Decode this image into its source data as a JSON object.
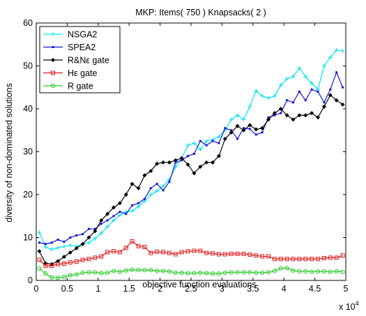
{
  "chart_data": {
    "type": "line",
    "title": "MKP: Items( 750 ) Knapsacks( 2 )",
    "xlabel": "objective function evaluations",
    "ylabel": "diversity of non-dominated solutions",
    "x_multiplier_label": "x 10",
    "x_multiplier_exp": "4",
    "xlim": [
      0,
      5
    ],
    "ylim": [
      0,
      60
    ],
    "xticks": [
      0,
      0.5,
      1,
      1.5,
      2,
      2.5,
      3,
      3.5,
      4,
      4.5,
      5
    ],
    "xtick_labels": [
      "0",
      "0.5",
      "1",
      "1.5",
      "2",
      "2.5",
      "3",
      "3.5",
      "4",
      "4.5",
      "5"
    ],
    "yticks": [
      0,
      10,
      20,
      30,
      40,
      50,
      60
    ],
    "ytick_labels": [
      "0",
      "10",
      "20",
      "30",
      "40",
      "50",
      "60"
    ],
    "grid": false,
    "legend_position": "top-left",
    "x": [
      0.05,
      0.15,
      0.25,
      0.35,
      0.45,
      0.55,
      0.65,
      0.75,
      0.85,
      0.95,
      1.05,
      1.15,
      1.25,
      1.35,
      1.45,
      1.55,
      1.65,
      1.75,
      1.85,
      1.95,
      2.05,
      2.15,
      2.25,
      2.35,
      2.45,
      2.55,
      2.65,
      2.75,
      2.85,
      2.95,
      3.05,
      3.15,
      3.25,
      3.35,
      3.45,
      3.55,
      3.65,
      3.75,
      3.85,
      3.95,
      4.05,
      4.15,
      4.25,
      4.35,
      4.45,
      4.55,
      4.65,
      4.75,
      4.85,
      4.95
    ],
    "series": [
      {
        "name": "NSGA2",
        "color": "#00e5ee",
        "marker": "plus",
        "values": [
          11.2,
          7.8,
          7.2,
          7.6,
          7.9,
          8.2,
          8.0,
          8.4,
          8.8,
          9.8,
          11.0,
          12.5,
          14.0,
          15.2,
          16.0,
          16.2,
          17.2,
          18.5,
          20.0,
          20.8,
          22.0,
          23.5,
          26.5,
          28.5,
          31.5,
          32.0,
          30.5,
          32.5,
          32.8,
          33.5,
          35.0,
          37.5,
          38.5,
          37.5,
          40.5,
          44.2,
          43.0,
          42.5,
          43.0,
          45.5,
          47.0,
          47.5,
          49.5,
          47.5,
          46.0,
          44.5,
          50.0,
          52.0,
          53.7,
          53.5
        ]
      },
      {
        "name": "SPEA2",
        "color": "#1414d6",
        "marker": "dot",
        "values": [
          8.8,
          8.5,
          8.8,
          9.5,
          9.0,
          10.0,
          10.5,
          10.8,
          12.0,
          12.0,
          13.2,
          14.0,
          15.0,
          16.0,
          15.5,
          17.5,
          18.0,
          19.0,
          21.5,
          22.5,
          21.0,
          23.0,
          27.5,
          28.0,
          29.0,
          29.5,
          32.5,
          31.5,
          32.5,
          32.0,
          35.5,
          35.0,
          33.0,
          35.5,
          35.3,
          34.0,
          34.5,
          38.0,
          38.5,
          39.0,
          42.0,
          41.5,
          44.0,
          42.0,
          44.5,
          44.0,
          41.5,
          44.5,
          48.5,
          45.0
        ]
      },
      {
        "name": "R&Nε gate",
        "color": "#000000",
        "marker": "diamond",
        "values": [
          6.8,
          4.0,
          3.8,
          4.5,
          5.5,
          6.5,
          7.5,
          8.5,
          10.0,
          11.5,
          14.0,
          15.5,
          17.0,
          18.0,
          20.0,
          22.5,
          21.5,
          24.5,
          25.5,
          27.2,
          27.5,
          27.5,
          28.0,
          28.5,
          27.0,
          25.0,
          26.5,
          27.5,
          27.5,
          29.0,
          33.0,
          34.5,
          36.0,
          35.0,
          36.2,
          35.2,
          35.5,
          37.5,
          39.0,
          40.0,
          38.5,
          37.5,
          38.5,
          38.5,
          39.0,
          38.0,
          40.5,
          43.2,
          42.0,
          41.0
        ]
      },
      {
        "name": "Hε gate",
        "color": "#e01818",
        "marker": "square",
        "values": [
          4.8,
          3.4,
          3.4,
          3.8,
          3.9,
          4.2,
          4.4,
          4.8,
          5.0,
          5.3,
          5.6,
          6.6,
          6.8,
          6.6,
          7.6,
          9.1,
          8.0,
          7.8,
          6.4,
          6.7,
          6.6,
          6.4,
          6.1,
          6.6,
          6.8,
          6.9,
          6.9,
          6.4,
          6.3,
          6.1,
          6.1,
          6.2,
          6.2,
          6.2,
          6.0,
          5.8,
          5.6,
          5.6,
          5.0,
          5.0,
          5.0,
          5.0,
          5.0,
          5.0,
          5.0,
          5.0,
          5.2,
          5.3,
          5.3,
          5.8
        ]
      },
      {
        "name": "R gate",
        "color": "#22cc22",
        "marker": "circle",
        "values": [
          2.8,
          1.6,
          0.7,
          0.6,
          0.8,
          1.2,
          1.4,
          1.8,
          1.9,
          1.9,
          1.7,
          1.8,
          2.2,
          2.0,
          2.3,
          2.5,
          2.4,
          2.4,
          2.4,
          2.2,
          2.2,
          2.1,
          1.8,
          1.8,
          1.7,
          1.7,
          1.8,
          1.7,
          1.6,
          1.6,
          1.8,
          1.9,
          1.9,
          1.9,
          1.9,
          1.8,
          1.8,
          1.9,
          2.2,
          2.8,
          2.9,
          2.3,
          2.1,
          2.1,
          2.0,
          2.1,
          2.1,
          2.0,
          2.1,
          2.0
        ]
      }
    ]
  }
}
